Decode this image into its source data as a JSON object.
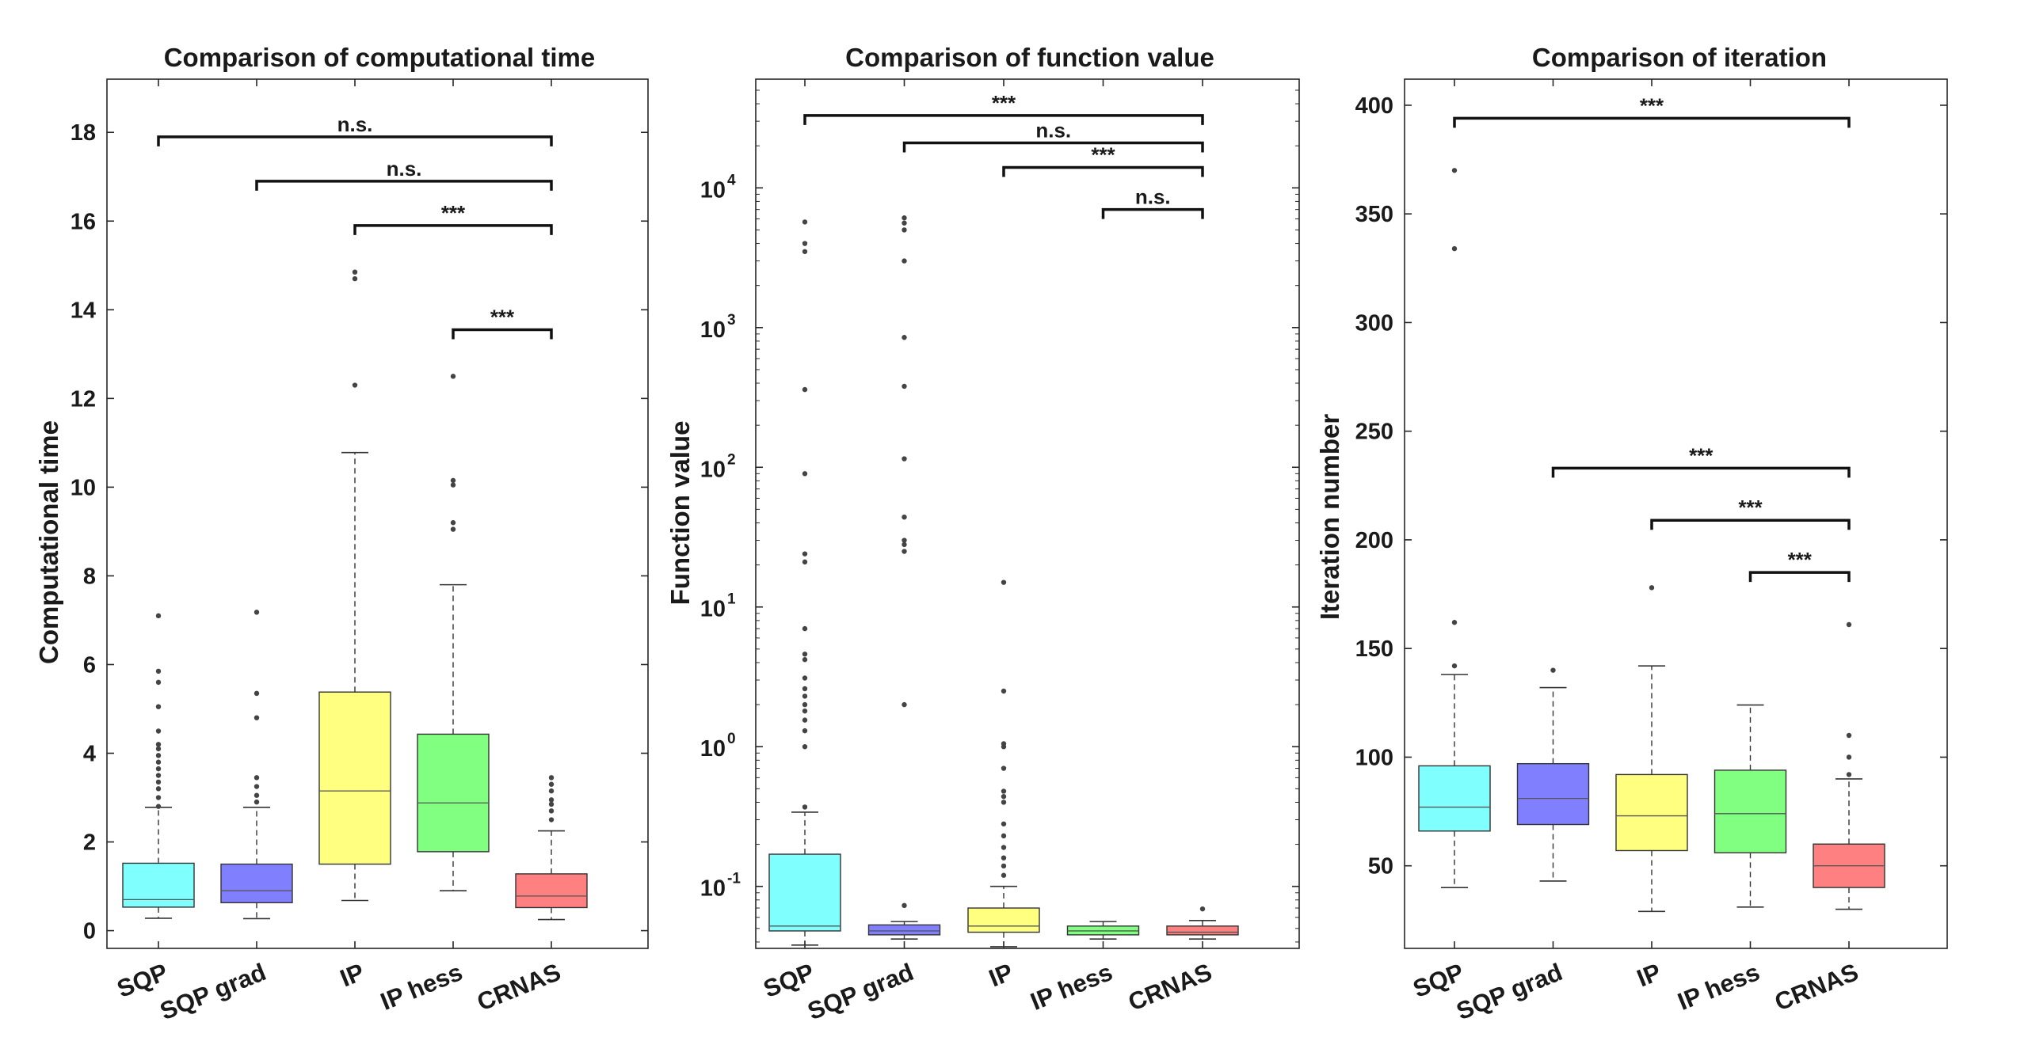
{
  "chart_data": [
    {
      "type": "box",
      "title": "Comparison of computational time",
      "xlabel": "",
      "ylabel": "Computational time",
      "ylim": [
        -0.4,
        19.2
      ],
      "yscale": "linear",
      "yticks": [
        {
          "v": 0,
          "label": "0"
        },
        {
          "v": 2,
          "label": "2"
        },
        {
          "v": 4,
          "label": "4"
        },
        {
          "v": 6,
          "label": "6"
        },
        {
          "v": 8,
          "label": "8"
        },
        {
          "v": 10,
          "label": "10"
        },
        {
          "v": 12,
          "label": "12"
        },
        {
          "v": 14,
          "label": "14"
        },
        {
          "v": 16,
          "label": "16"
        },
        {
          "v": 18,
          "label": "18"
        }
      ],
      "categories": [
        "SQP",
        "SQP grad",
        "IP",
        "IP hess",
        "CRNAS"
      ],
      "boxes": [
        {
          "category": "SQP",
          "color": "#80ffff",
          "min": 0.28,
          "q1": 0.53,
          "median": 0.7,
          "q3": 1.52,
          "max": 2.78,
          "outliers": [
            2.8,
            3.0,
            3.2,
            3.35,
            3.5,
            3.65,
            3.8,
            3.95,
            4.1,
            4.2,
            4.5,
            5.05,
            5.6,
            5.85,
            7.1
          ]
        },
        {
          "category": "SQP grad",
          "color": "#8080ff",
          "min": 0.27,
          "q1": 0.63,
          "median": 0.9,
          "q3": 1.5,
          "max": 2.78,
          "outliers": [
            2.9,
            3.05,
            3.25,
            3.45,
            4.8,
            5.35,
            7.18
          ]
        },
        {
          "category": "IP",
          "color": "#ffff80",
          "min": 0.68,
          "q1": 1.5,
          "median": 3.15,
          "q3": 5.38,
          "max": 10.78,
          "outliers": [
            12.3,
            14.7,
            14.85
          ]
        },
        {
          "category": "IP hess",
          "color": "#80ff80",
          "min": 0.9,
          "q1": 1.78,
          "median": 2.88,
          "q3": 4.43,
          "max": 7.8,
          "outliers": [
            9.05,
            9.2,
            10.05,
            10.15,
            12.5
          ]
        },
        {
          "category": "CRNAS",
          "color": "#ff8080",
          "min": 0.25,
          "q1": 0.52,
          "median": 0.78,
          "q3": 1.28,
          "max": 2.25,
          "outliers": [
            2.5,
            2.7,
            2.85,
            2.95,
            3.15,
            3.3,
            3.45
          ]
        }
      ],
      "significance": [
        {
          "from": "SQP",
          "to": "CRNAS",
          "label": "n.s.",
          "level": 17.9
        },
        {
          "from": "SQP grad",
          "to": "CRNAS",
          "label": "n.s.",
          "level": 16.9
        },
        {
          "from": "IP",
          "to": "CRNAS",
          "label": "***",
          "level": 15.9
        },
        {
          "from": "IP hess",
          "to": "CRNAS",
          "label": "***",
          "level": 13.55
        }
      ]
    },
    {
      "type": "box",
      "title": "Comparison of function value",
      "xlabel": "",
      "ylabel": "Function value",
      "ylim": [
        0.036,
        60000
      ],
      "yscale": "log",
      "yticks": [
        {
          "v": 0.1,
          "base": "10",
          "exp": "-1"
        },
        {
          "v": 1,
          "base": "10",
          "exp": "0"
        },
        {
          "v": 10,
          "base": "10",
          "exp": "1"
        },
        {
          "v": 100,
          "base": "10",
          "exp": "2"
        },
        {
          "v": 1000,
          "base": "10",
          "exp": "3"
        },
        {
          "v": 10000,
          "base": "10",
          "exp": "4"
        }
      ],
      "categories": [
        "SQP",
        "SQP grad",
        "IP",
        "IP hess",
        "CRNAS"
      ],
      "boxes": [
        {
          "category": "SQP",
          "color": "#80ffff",
          "min": 0.038,
          "q1": 0.048,
          "median": 0.052,
          "q3": 0.17,
          "max": 0.34,
          "outliers": [
            0.37,
            1.0,
            1.3,
            1.55,
            1.8,
            2.0,
            2.3,
            2.6,
            3.1,
            4.2,
            4.6,
            7.0,
            21,
            24,
            90,
            360,
            3500,
            4000,
            5700
          ]
        },
        {
          "category": "SQP grad",
          "color": "#8080ff",
          "min": 0.042,
          "q1": 0.045,
          "median": 0.048,
          "q3": 0.053,
          "max": 0.056,
          "outliers": [
            0.073,
            2.0,
            25,
            28,
            30,
            44,
            115,
            380,
            850,
            3000,
            5000,
            5600,
            6100
          ]
        },
        {
          "category": "IP",
          "color": "#ffff80",
          "min": 0.037,
          "q1": 0.047,
          "median": 0.052,
          "q3": 0.07,
          "max": 0.1,
          "outliers": [
            0.12,
            0.14,
            0.16,
            0.19,
            0.23,
            0.28,
            0.4,
            0.44,
            0.48,
            0.7,
            1.0,
            1.05,
            2.5,
            15
          ]
        },
        {
          "category": "IP hess",
          "color": "#80ff80",
          "min": 0.042,
          "q1": 0.045,
          "median": 0.048,
          "q3": 0.052,
          "max": 0.056,
          "outliers": []
        },
        {
          "category": "CRNAS",
          "color": "#ff8080",
          "min": 0.042,
          "q1": 0.045,
          "median": 0.047,
          "q3": 0.052,
          "max": 0.057,
          "outliers": [
            0.069
          ]
        }
      ],
      "significance": [
        {
          "from": "SQP",
          "to": "CRNAS",
          "label": "***",
          "level": 33000
        },
        {
          "from": "SQP grad",
          "to": "CRNAS",
          "label": "n.s.",
          "level": 21000
        },
        {
          "from": "IP",
          "to": "CRNAS",
          "label": "***",
          "level": 14000
        },
        {
          "from": "IP hess",
          "to": "CRNAS",
          "label": "n.s.",
          "level": 7000
        }
      ]
    },
    {
      "type": "box",
      "title": "Comparison of iteration",
      "xlabel": "",
      "ylabel": "Iteration number",
      "ylim": [
        12,
        412
      ],
      "yscale": "linear",
      "yticks": [
        {
          "v": 50,
          "label": "50"
        },
        {
          "v": 100,
          "label": "100"
        },
        {
          "v": 150,
          "label": "150"
        },
        {
          "v": 200,
          "label": "200"
        },
        {
          "v": 250,
          "label": "250"
        },
        {
          "v": 300,
          "label": "300"
        },
        {
          "v": 350,
          "label": "350"
        },
        {
          "v": 400,
          "label": "400"
        }
      ],
      "categories": [
        "SQP",
        "SQP grad",
        "IP",
        "IP hess",
        "CRNAS"
      ],
      "boxes": [
        {
          "category": "SQP",
          "color": "#80ffff",
          "min": 40,
          "q1": 66,
          "median": 77,
          "q3": 96,
          "max": 138,
          "outliers": [
            142,
            162,
            334,
            370
          ]
        },
        {
          "category": "SQP grad",
          "color": "#8080ff",
          "min": 43,
          "q1": 69,
          "median": 81,
          "q3": 97,
          "max": 132,
          "outliers": [
            140
          ]
        },
        {
          "category": "IP",
          "color": "#ffff80",
          "min": 29,
          "q1": 57,
          "median": 73,
          "q3": 92,
          "max": 142,
          "outliers": [
            178
          ]
        },
        {
          "category": "IP hess",
          "color": "#80ff80",
          "min": 31,
          "q1": 56,
          "median": 74,
          "q3": 94,
          "max": 124,
          "outliers": []
        },
        {
          "category": "CRNAS",
          "color": "#ff8080",
          "min": 30,
          "q1": 40,
          "median": 50,
          "q3": 60,
          "max": 90,
          "outliers": [
            92,
            100,
            110,
            161
          ]
        }
      ],
      "significance": [
        {
          "from": "SQP",
          "to": "CRNAS",
          "label": "***",
          "level": 394
        },
        {
          "from": "SQP grad",
          "to": "CRNAS",
          "label": "***",
          "level": 233
        },
        {
          "from": "IP",
          "to": "CRNAS",
          "label": "***",
          "level": 209
        },
        {
          "from": "IP hess",
          "to": "CRNAS",
          "label": "***",
          "level": 185
        }
      ]
    }
  ]
}
